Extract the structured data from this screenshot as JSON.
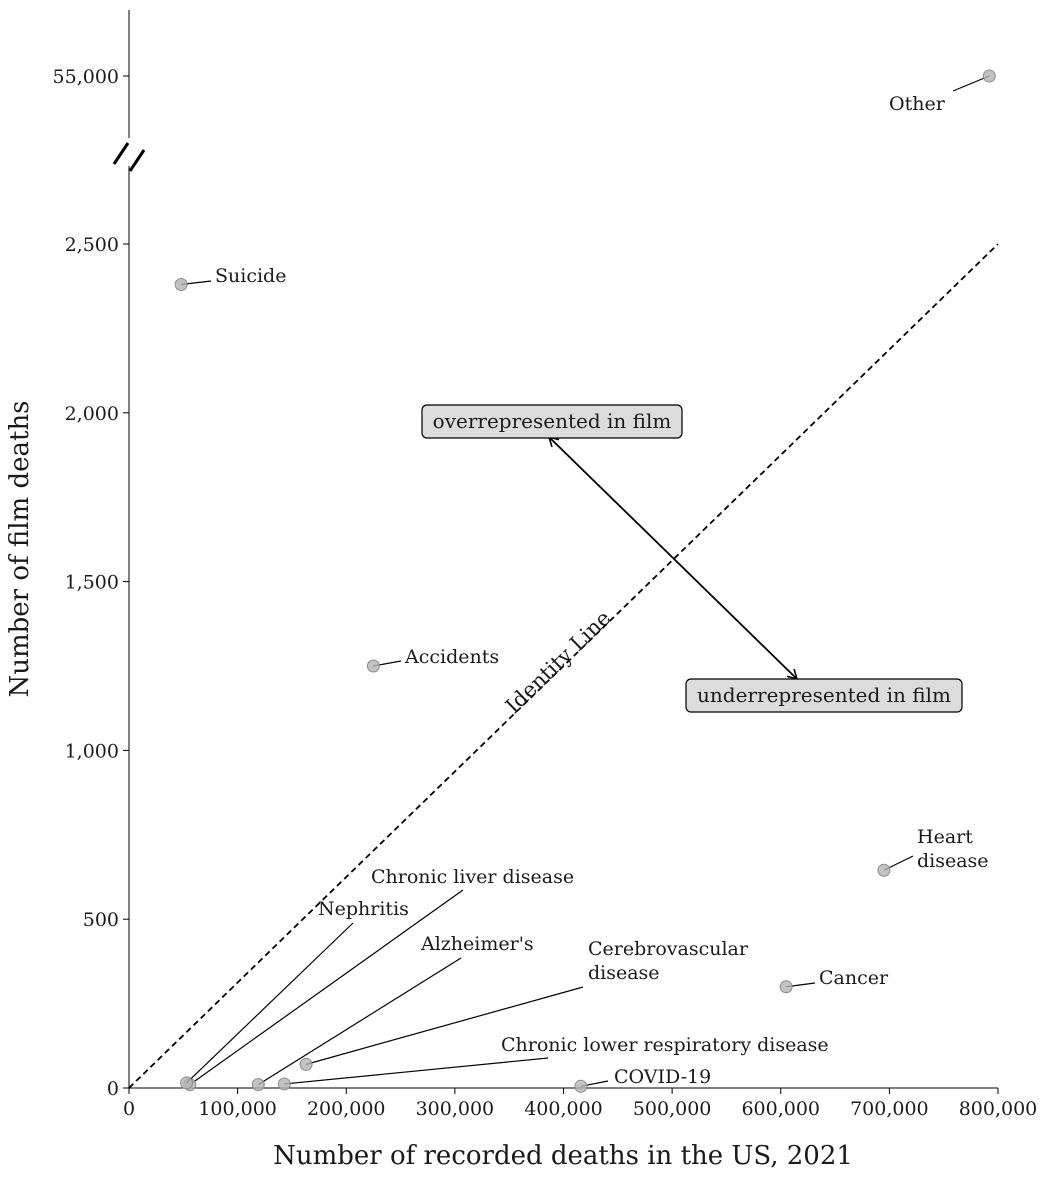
{
  "chart_data": {
    "type": "scatter",
    "xlabel": "Number of recorded deaths in the US, 2021",
    "ylabel": "Number of film deaths",
    "xlim": [
      0,
      800000
    ],
    "ylim_lower": [
      0,
      2500
    ],
    "ylim_upper_value": 55000,
    "axis_break": true,
    "x_ticks": [
      0,
      100000,
      200000,
      300000,
      400000,
      500000,
      600000,
      700000,
      800000
    ],
    "x_tick_labels": [
      "0",
      "100,000",
      "200,000",
      "300,000",
      "400,000",
      "500,000",
      "600,000",
      "700,000",
      "800,000"
    ],
    "y_ticks": [
      0,
      500,
      1000,
      1500,
      2000,
      2500
    ],
    "y_tick_labels": [
      "0",
      "500",
      "1,000",
      "1,500",
      "2,000",
      "2,500"
    ],
    "y_upper_tick_label": "55,000",
    "identity_line_label": "Identity Line",
    "annotations": {
      "over": "overrepresented in film",
      "under": "underrepresented in film"
    },
    "points": [
      {
        "name": "Suicide",
        "lines": [
          "Suicide"
        ],
        "x": 48000,
        "y": 2380
      },
      {
        "name": "Accidents",
        "lines": [
          "Accidents"
        ],
        "x": 225000,
        "y": 1250
      },
      {
        "name": "Heart disease",
        "lines": [
          "Heart",
          "disease"
        ],
        "x": 695000,
        "y": 645
      },
      {
        "name": "Cancer",
        "lines": [
          "Cancer"
        ],
        "x": 605000,
        "y": 300
      },
      {
        "name": "COVID-19",
        "lines": [
          "COVID-19"
        ],
        "x": 416000,
        "y": 5
      },
      {
        "name": "Chronic lower respiratory disease",
        "lines": [
          "Chronic lower respiratory disease"
        ],
        "x": 143000,
        "y": 12
      },
      {
        "name": "Cerebrovascular disease",
        "lines": [
          "Cerebrovascular",
          "disease"
        ],
        "x": 163000,
        "y": 70
      },
      {
        "name": "Alzheimer's",
        "lines": [
          "Alzheimer's"
        ],
        "x": 119000,
        "y": 10
      },
      {
        "name": "Chronic liver disease",
        "lines": [
          "Chronic liver disease"
        ],
        "x": 56000,
        "y": 10
      },
      {
        "name": "Nephritis",
        "lines": [
          "Nephritis"
        ],
        "x": 53000,
        "y": 15
      },
      {
        "name": "Other",
        "lines": [
          "Other"
        ],
        "x": 792000,
        "y": 55000,
        "upper": true
      }
    ],
    "grid": false,
    "legend": "none"
  }
}
